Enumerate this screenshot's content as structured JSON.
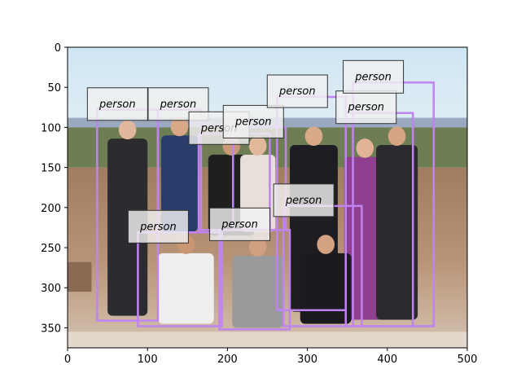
{
  "chart_data": {
    "type": "scatter",
    "subtype": "image-with-detection-boxes",
    "xlim": [
      0,
      500
    ],
    "ylim": [
      375,
      0
    ],
    "y_axis_inverted": true,
    "xticks": [
      0,
      100,
      200,
      300,
      400,
      500
    ],
    "yticks": [
      0,
      50,
      100,
      150,
      200,
      250,
      300,
      350
    ],
    "grid": false,
    "box_color": "#c084f0",
    "label_box_fill": "#f0f0f0",
    "label_box_edge": "#333333",
    "image_description": "group photo of ten people outdoors",
    "boxes": [
      {
        "label": "person",
        "x1": 37,
        "y1": 78,
        "x2": 113,
        "y2": 341
      },
      {
        "label": "person",
        "x1": 88,
        "y1": 231,
        "x2": 193,
        "y2": 348
      },
      {
        "label": "person",
        "x1": 113,
        "y1": 78,
        "x2": 167,
        "y2": 231
      },
      {
        "label": "person",
        "x1": 164,
        "y1": 108,
        "x2": 253,
        "y2": 228
      },
      {
        "label": "person",
        "x1": 190,
        "y1": 228,
        "x2": 278,
        "y2": 352
      },
      {
        "label": "person",
        "x1": 207,
        "y1": 100,
        "x2": 273,
        "y2": 228
      },
      {
        "label": "person",
        "x1": 262,
        "y1": 62,
        "x2": 348,
        "y2": 328
      },
      {
        "label": "person",
        "x1": 270,
        "y1": 198,
        "x2": 368,
        "y2": 348
      },
      {
        "label": "person",
        "x1": 348,
        "y1": 82,
        "x2": 432,
        "y2": 348
      },
      {
        "label": "person",
        "x1": 357,
        "y1": 44,
        "x2": 458,
        "y2": 348
      }
    ]
  }
}
